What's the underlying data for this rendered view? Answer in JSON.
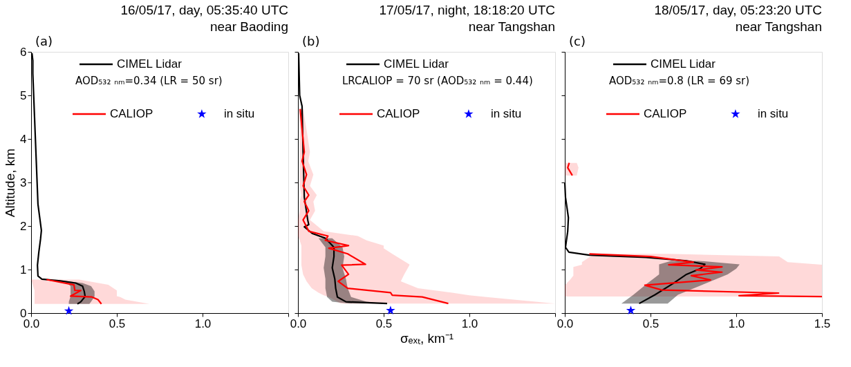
{
  "chart_data": [
    {
      "type": "line",
      "orientation": "horizontal",
      "title": "16/05/17, day, 05:35:40 UTC",
      "subtitle": "near Baoding",
      "ylabel": "Altitude, km",
      "annotations": [
        "(a)",
        "AOD₅₃₂ ₙₘ=0.34  (LR = 50 sr)"
      ],
      "xlim": [
        0,
        1.5
      ],
      "xticks": [
        {
          "value": 0,
          "label": "0.0"
        },
        {
          "value": 0.5,
          "label": "0.5"
        },
        {
          "value": 1.0,
          "label": "1.0"
        },
        {
          "value": 1.5,
          "label": null
        }
      ],
      "ylim": [
        0,
        6
      ],
      "yticks": [
        0,
        1,
        2,
        3,
        4,
        5,
        6
      ],
      "legend": "top",
      "grid": false,
      "series": [
        {
          "name": "CIMEL Lidar",
          "color": "#000000",
          "x": [
            5.97,
            5.8,
            5.5,
            5.0,
            4.5,
            4.0,
            3.5,
            3.0,
            2.5,
            2.2,
            1.9,
            1.7,
            1.4,
            1.1,
            0.85,
            0.78,
            0.74,
            0.69,
            0.62,
            0.5,
            0.38,
            0.26,
            0.21
          ],
          "values": [
            0.005,
            0.01,
            0.01,
            0.015,
            0.02,
            0.025,
            0.03,
            0.035,
            0.04,
            0.05,
            0.06,
            0.055,
            0.045,
            0.037,
            0.04,
            0.063,
            0.17,
            0.26,
            0.3,
            0.31,
            0.315,
            0.29,
            0.27
          ],
          "lower": [
            null,
            null,
            null,
            null,
            null,
            null,
            null,
            null,
            null,
            null,
            null,
            null,
            null,
            null,
            null,
            null,
            0.14,
            0.21,
            0.23,
            0.23,
            0.23,
            0.22,
            0.22
          ],
          "upper": [
            null,
            null,
            null,
            null,
            null,
            null,
            null,
            null,
            null,
            null,
            null,
            null,
            null,
            null,
            null,
            null,
            0.2,
            0.3,
            0.35,
            0.37,
            0.37,
            0.35,
            0.34
          ]
        },
        {
          "name": "CALIOP",
          "color": "#ff0000",
          "x": [
            0.77,
            0.65,
            0.52,
            0.52,
            0.39,
            0.37,
            0.31,
            0.21
          ],
          "values": [
            0.09,
            0.25,
            0.255,
            0.29,
            0.23,
            0.355,
            0.39,
            0.41
          ],
          "lower": [
            0.0,
            0.01,
            0.02,
            0.02,
            0.02,
            0.02,
            0.02,
            0.02
          ],
          "upper": [
            0.28,
            0.45,
            0.5,
            0.5,
            0.5,
            0.52,
            0.55,
            0.69
          ]
        },
        {
          "name": "in situ",
          "type": "scatter",
          "marker": "star",
          "color": "#0000ff",
          "x": [
            0.05
          ],
          "values": [
            0.22
          ]
        }
      ]
    },
    {
      "type": "line",
      "orientation": "horizontal",
      "title": "17/05/17, night, 18:18:20 UTC",
      "subtitle": "near Tangshan",
      "xlabel": "σₑₓₜ, km⁻¹",
      "annotations": [
        "(b)",
        "LRCALIOP = 70 sr  (AOD₅₃₂ ₙₘ = 0.44)"
      ],
      "xlim": [
        0,
        1.5
      ],
      "xticks": [
        {
          "value": 0,
          "label": "0.0"
        },
        {
          "value": 0.5,
          "label": "0.5"
        },
        {
          "value": 1.0,
          "label": "1.0"
        },
        {
          "value": 1.5,
          "label": null
        }
      ],
      "ylim": [
        0,
        6
      ],
      "yticks": [
        0,
        1,
        2,
        3,
        4,
        5,
        6
      ],
      "tick_labels": "x",
      "legend": "top",
      "grid": false,
      "series": [
        {
          "name": "CIMEL Lidar",
          "color": "#000000",
          "x": [
            5.97,
            5.0,
            4.75,
            3.7,
            2.66,
            2.14,
            2.03,
            1.98,
            1.83,
            1.72,
            1.51,
            1.3,
            1.04,
            0.78,
            0.57,
            0.37,
            0.26,
            0.22
          ],
          "values": [
            0.004,
            0.01,
            0.024,
            0.03,
            0.037,
            0.057,
            0.063,
            0.037,
            0.083,
            0.16,
            0.21,
            0.21,
            0.2,
            0.215,
            0.22,
            0.23,
            0.28,
            0.52
          ],
          "lower": [
            null,
            null,
            null,
            null,
            null,
            null,
            null,
            null,
            null,
            0.12,
            0.16,
            0.16,
            0.15,
            0.16,
            0.16,
            0.17,
            0.2,
            0.3
          ],
          "upper": [
            null,
            null,
            null,
            null,
            null,
            null,
            null,
            null,
            null,
            0.2,
            0.26,
            0.27,
            0.26,
            0.28,
            0.29,
            0.31,
            0.4,
            0.5
          ]
        },
        {
          "name": "CALIOP",
          "color": "#ff0000",
          "x": [
            4.69,
            4.22,
            3.7,
            3.49,
            3.18,
            2.92,
            2.71,
            2.56,
            2.35,
            2.14,
            1.88,
            1.77,
            1.67,
            1.55,
            1.49,
            1.36,
            1.12,
            1.1,
            0.89,
            0.73,
            0.57,
            0.47,
            0.41,
            0.37,
            0.22
          ],
          "values": [
            0.013,
            0.024,
            0.037,
            0.024,
            0.05,
            0.03,
            0.063,
            0.037,
            0.063,
            0.03,
            0.063,
            0.175,
            0.16,
            0.295,
            0.18,
            0.29,
            0.394,
            0.255,
            0.295,
            0.235,
            0.29,
            0.54,
            0.55,
            0.725,
            0.877
          ],
          "lower": [
            0.005,
            0.01,
            0.01,
            0.01,
            0.01,
            0.01,
            0.02,
            0.01,
            0.01,
            0.0,
            0.0,
            0.0,
            0.01,
            0.02,
            0.02,
            0.02,
            0.02,
            0.02,
            0.03,
            0.05,
            0.08,
            0.12,
            0.15,
            0.18,
            0.25
          ],
          "upper": [
            0.03,
            0.05,
            0.07,
            0.06,
            0.09,
            0.07,
            0.11,
            0.09,
            0.1,
            0.07,
            0.15,
            0.35,
            0.4,
            0.5,
            0.5,
            0.55,
            0.65,
            0.65,
            0.62,
            0.6,
            0.7,
            0.9,
            1.0,
            1.1,
            1.5
          ]
        },
        {
          "name": "in situ",
          "type": "scatter",
          "marker": "star",
          "color": "#0000ff",
          "x": [
            0.06
          ],
          "values": [
            0.54
          ]
        }
      ]
    },
    {
      "type": "line",
      "orientation": "horizontal",
      "title": "18/05/17, day, 05:23:20 UTC",
      "subtitle": "near Tangshan",
      "annotations": [
        "(c)",
        "AOD₅₃₂ ₙₘ=0.8  (LR = 69 sr)"
      ],
      "xlim": [
        0,
        1.5
      ],
      "xticks": [
        {
          "value": 0,
          "label": "0.0"
        },
        {
          "value": 0.5,
          "label": "0.5"
        },
        {
          "value": 1.0,
          "label": "1.0"
        },
        {
          "value": 1.5,
          "label": "1.5"
        }
      ],
      "ylim": [
        0,
        6
      ],
      "yticks": [
        0,
        1,
        2,
        3,
        4,
        5,
        6
      ],
      "tick_labels": "x",
      "legend": "top",
      "grid": false,
      "series": [
        {
          "name": "CIMEL Lidar",
          "color": "#000000",
          "x": [
            3.0,
            2.66,
            2.19,
            1.88,
            1.51,
            1.4,
            1.33,
            1.28,
            1.2,
            1.12,
            1.02,
            0.89,
            0.68,
            0.42,
            0.22
          ],
          "values": [
            0.0,
            0.004,
            0.021,
            0.017,
            0.004,
            0.024,
            0.143,
            0.474,
            0.71,
            0.817,
            0.79,
            0.71,
            0.632,
            0.526,
            0.434
          ],
          "lower": [
            null,
            null,
            null,
            null,
            null,
            null,
            null,
            null,
            0.62,
            0.55,
            0.55,
            0.55,
            0.48,
            0.4,
            0.33
          ],
          "upper": [
            null,
            null,
            null,
            null,
            null,
            null,
            null,
            null,
            0.78,
            1.02,
            1.0,
            0.95,
            0.82,
            0.66,
            0.6
          ]
        },
        {
          "name": "CALIOP",
          "color": "#ff0000",
          "x": [
            3.45,
            3.34,
            3.16,
            2.0,
            1.36,
            1.3,
            1.17,
            1.11,
            1.06,
            0.99,
            0.94,
            0.86,
            0.76,
            0.64,
            0.53,
            0.46,
            0.4,
            0.38
          ],
          "values": [
            0.026,
            0.017,
            0.044,
            null,
            0.143,
            0.5,
            0.75,
            0.606,
            0.917,
            0.765,
            0.917,
            0.738,
            0.85,
            0.467,
            0.566,
            1.247,
            1.016,
            1.5
          ],
          "lower": [
            0.0,
            0.0,
            0.0,
            null,
            0.2,
            0.15,
            0.1,
            0.1,
            0.05,
            0.05,
            0.05,
            0.05,
            0.03,
            0.0,
            0.0,
            0.0,
            0.0,
            0.0
          ],
          "upper": [
            0.07,
            0.08,
            0.07,
            null,
            0.6,
            1.25,
            1.3,
            1.5,
            1.5,
            1.5,
            1.5,
            1.5,
            1.5,
            1.5,
            1.5,
            1.5,
            1.5,
            1.5
          ]
        },
        {
          "name": "in situ",
          "type": "scatter",
          "marker": "star",
          "color": "#0000ff",
          "x": [
            0.06
          ],
          "values": [
            0.385
          ]
        }
      ]
    }
  ]
}
